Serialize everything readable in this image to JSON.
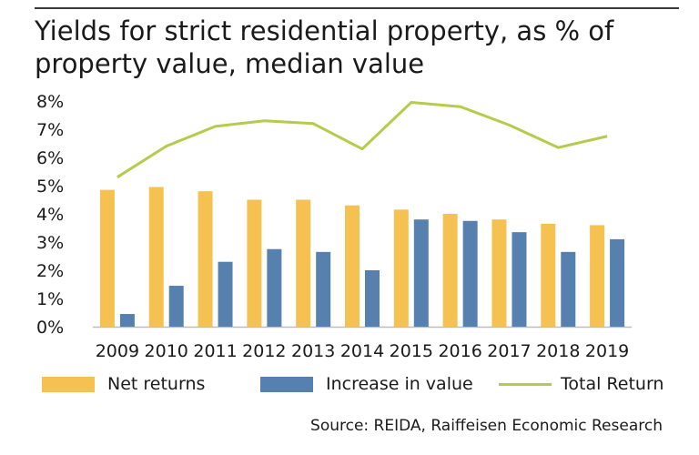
{
  "title": "Yields for strict residential property, as % of property value, median value",
  "source": "Source: REIDA, Raiffeisen Economic Research",
  "colors": {
    "net": "#F5C150",
    "increase": "#5680AE",
    "total": "#B6CA4B",
    "axis": "#bdbdbd"
  },
  "chart_data": {
    "type": "bar",
    "categories": [
      "2009",
      "2010",
      "2011",
      "2012",
      "2013",
      "2014",
      "2015",
      "2016",
      "2017",
      "2018",
      "2019"
    ],
    "series": [
      {
        "name": "Net returns",
        "type": "bar",
        "values": [
          4.85,
          4.95,
          4.8,
          4.5,
          4.5,
          4.3,
          4.15,
          4.0,
          3.8,
          3.65,
          3.6
        ]
      },
      {
        "name": "Increase in value",
        "type": "bar",
        "values": [
          0.45,
          1.45,
          2.3,
          2.75,
          2.65,
          2.0,
          3.8,
          3.75,
          3.35,
          2.65,
          3.1
        ]
      },
      {
        "name": "Total Return",
        "type": "line",
        "values": [
          5.3,
          6.4,
          7.1,
          7.3,
          7.2,
          6.3,
          7.95,
          7.8,
          7.15,
          6.35,
          6.75
        ]
      }
    ],
    "ylim": [
      0,
      8
    ],
    "yticks": [
      "0%",
      "1%",
      "2%",
      "3%",
      "4%",
      "5%",
      "6%",
      "7%",
      "8%"
    ],
    "legend": "bottom",
    "grid": false
  }
}
